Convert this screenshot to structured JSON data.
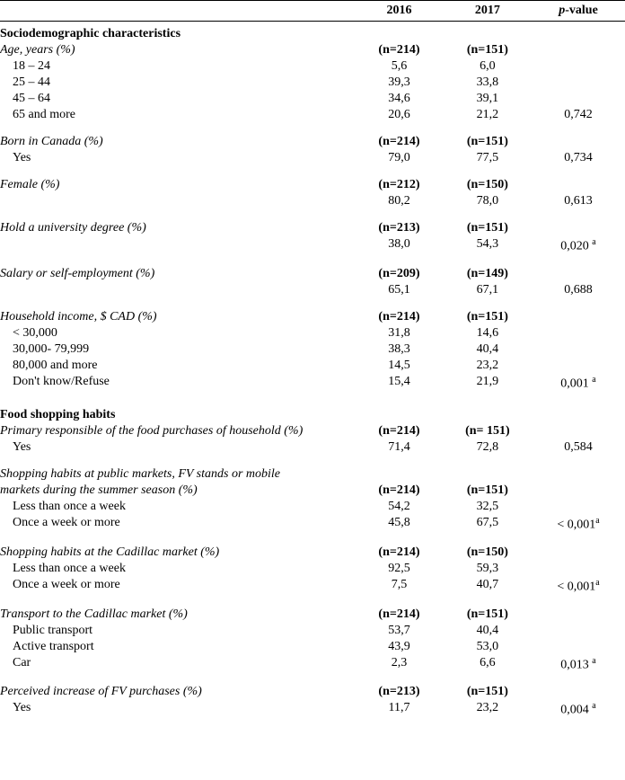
{
  "header": {
    "y2016": "2016",
    "y2017": "2017",
    "pvalue_label_prefix": "p",
    "pvalue_label_suffix": "-value"
  },
  "sections": {
    "socio": "Sociodemographic characteristics",
    "food": "Food shopping habits"
  },
  "rows": {
    "age_header": {
      "label": "Age, years (%)",
      "n2016": "(n=214)",
      "n2017": "(n=151)"
    },
    "age_18_24": {
      "label": "18 – 24",
      "v2016": "5,6",
      "v2017": "6,0"
    },
    "age_25_44": {
      "label": "25 – 44",
      "v2016": "39,3",
      "v2017": "33,8"
    },
    "age_45_64": {
      "label": "45 – 64",
      "v2016": "34,6",
      "v2017": "39,1"
    },
    "age_65": {
      "label": "65 and more",
      "v2016": "20,6",
      "v2017": "21,2",
      "p": "0,742"
    },
    "born_header": {
      "label": "Born in Canada (%)",
      "n2016": "(n=214)",
      "n2017": "(n=151)"
    },
    "born_yes": {
      "label": "Yes",
      "v2016": "79,0",
      "v2017": "77,5",
      "p": "0,734"
    },
    "female_header": {
      "label": "Female (%)",
      "n2016": "(n=212)",
      "n2017": "(n=150)"
    },
    "female_val": {
      "v2016": "80,2",
      "v2017": "78,0",
      "p": "0,613"
    },
    "degree_header": {
      "label": "Hold a university degree (%)",
      "n2016": "(n=213)",
      "n2017": "(n=151)"
    },
    "degree_val": {
      "v2016": "38,0",
      "v2017": "54,3",
      "p": "0,020",
      "sup": "a"
    },
    "salary_header": {
      "label": "Salary or self-employment (%)",
      "n2016": "(n=209)",
      "n2017": "(n=149)"
    },
    "salary_val": {
      "v2016": "65,1",
      "v2017": "67,1",
      "p": "0,688"
    },
    "income_header": {
      "label": "Household income, $ CAD (%)",
      "n2016": "(n=214)",
      "n2017": "(n=151)"
    },
    "income_lt30": {
      "label": "< 30,000",
      "v2016": "31,8",
      "v2017": "14,6"
    },
    "income_30_79": {
      "label": "30,000- 79,999",
      "v2016": "38,3",
      "v2017": "40,4"
    },
    "income_80": {
      "label": "80,000 and more",
      "v2016": "14,5",
      "v2017": "23,2"
    },
    "income_dk": {
      "label": "Don't know/Refuse",
      "v2016": "15,4",
      "v2017": "21,9",
      "p": "0,001",
      "sup": "a"
    },
    "primary_header": {
      "label": "Primary responsible of the food purchases of household (%)",
      "n2016": "(n=214)",
      "n2017": "(n= 151)"
    },
    "primary_yes": {
      "label": "Yes",
      "v2016": "71,4",
      "v2017": "72,8",
      "p": "0,584"
    },
    "shop_public_header_l1": {
      "label": "Shopping habits at public markets, FV stands or mobile"
    },
    "shop_public_header_l2": {
      "label": "markets during the summer season (%)",
      "n2016": "(n=214)",
      "n2017": "(n=151)"
    },
    "shop_public_less": {
      "label": "Less than once a week",
      "v2016": "54,2",
      "v2017": "32,5"
    },
    "shop_public_once": {
      "label": "Once a week or more",
      "v2016": "45,8",
      "v2017": "67,5",
      "p": "< 0,001",
      "sup": "a"
    },
    "shop_cadillac_header": {
      "label": "Shopping habits at the Cadillac market (%)",
      "n2016": "(n=214)",
      "n2017": "(n=150)"
    },
    "shop_cadillac_less": {
      "label": "Less than once a week",
      "v2016": "92,5",
      "v2017": "59,3"
    },
    "shop_cadillac_once": {
      "label": "Once a week or more",
      "v2016": "7,5",
      "v2017": "40,7",
      "p": "< 0,001",
      "sup": "a"
    },
    "transport_header": {
      "label": "Transport to the Cadillac market (%)",
      "n2016": "(n=214)",
      "n2017": "(n=151)"
    },
    "transport_public": {
      "label": "Public transport",
      "v2016": "53,7",
      "v2017": "40,4"
    },
    "transport_active": {
      "label": "Active transport",
      "v2016": "43,9",
      "v2017": "53,0"
    },
    "transport_car": {
      "label": "Car",
      "v2016": "2,3",
      "v2017": "6,6",
      "p": "0,013",
      "sup": "a"
    },
    "perceived_header": {
      "label": "Perceived increase of FV purchases (%)",
      "n2016": "(n=213)",
      "n2017": "(n=151)"
    },
    "perceived_yes": {
      "label": "Yes",
      "v2016": "11,7",
      "v2017": "23,2",
      "p": "0,004",
      "sup": "a"
    }
  }
}
